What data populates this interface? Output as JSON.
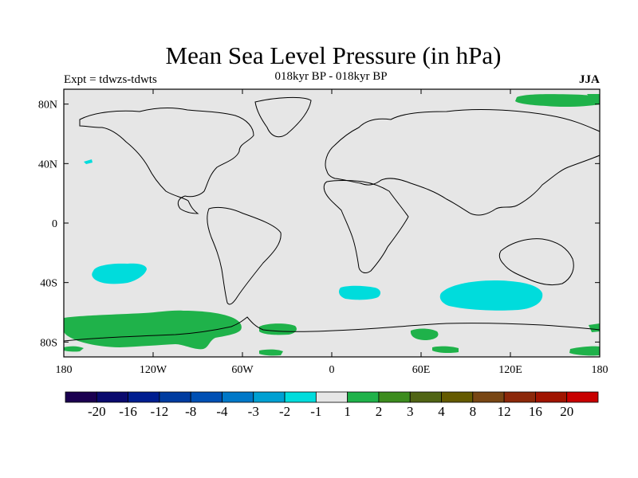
{
  "title": "Mean Sea Level Pressure (in hPa)",
  "experiment": "Expt = tdwzs-tdwts",
  "subtitle": "018kyr BP - 018kyr BP",
  "season": "JJA",
  "map": {
    "background_color": "#e6e6e6",
    "lon_range": [
      -180,
      180
    ],
    "lat_range": [
      -90,
      90
    ],
    "lon_ticks": [
      "180",
      "120W",
      "60W",
      "0",
      "60E",
      "120E",
      "180"
    ],
    "lat_ticks": [
      "80N",
      "40N",
      "0",
      "40S",
      "80S"
    ],
    "anomaly_regions": [
      {
        "name": "arctic-positive",
        "class": "1 to 2",
        "color": "#1fb24a"
      },
      {
        "name": "south-pacific-negative",
        "class": "-2 to -1",
        "color": "#00dcdc"
      },
      {
        "name": "south-indian-negative",
        "class": "-2 to -1",
        "color": "#00dcdc"
      },
      {
        "name": "south-atlantic-negative",
        "class": "-2 to -1",
        "color": "#00dcdc"
      },
      {
        "name": "southern-ocean-positive",
        "class": "1 to 2",
        "color": "#1fb24a"
      }
    ]
  },
  "colorbar": {
    "colors": [
      "#1b0050",
      "#0a0a6e",
      "#001e90",
      "#003ca0",
      "#0050b4",
      "#0078c8",
      "#00a0d2",
      "#00dcdc",
      "#e6e6e6",
      "#1fb24a",
      "#3c8c1e",
      "#506414",
      "#645a00",
      "#784614",
      "#8c280a",
      "#a01400",
      "#c80000"
    ],
    "labels": [
      "-20",
      "-16",
      "-12",
      "-8",
      "-4",
      "-3",
      "-2",
      "-1",
      "1",
      "2",
      "3",
      "4",
      "8",
      "12",
      "16",
      "20"
    ]
  }
}
